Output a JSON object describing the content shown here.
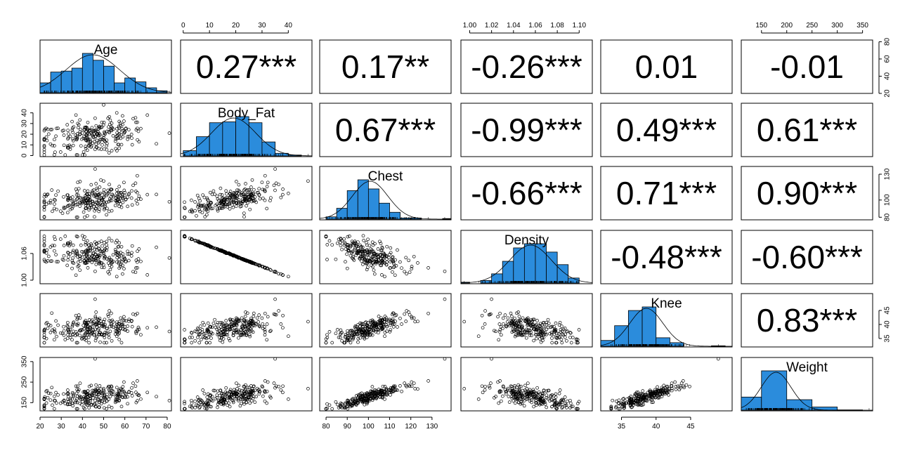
{
  "chart_data": {
    "type": "scatter-matrix",
    "variables": [
      "Age",
      "Body_Fat",
      "Chest",
      "Density",
      "Knee",
      "Weight"
    ],
    "histogram_color": "#2b8cdc",
    "correlations": [
      [
        null,
        "0.27***",
        "0.17**",
        "-0.26***",
        "0.01",
        "-0.01"
      ],
      [
        null,
        null,
        "0.67***",
        "-0.99***",
        "0.49***",
        "0.61***"
      ],
      [
        null,
        null,
        null,
        "-0.66***",
        "0.71***",
        "0.90***"
      ],
      [
        null,
        null,
        null,
        null,
        "-0.48***",
        "-0.60***"
      ],
      [
        null,
        null,
        null,
        null,
        null,
        "0.83***"
      ]
    ],
    "ranges": {
      "Age": [
        20,
        82
      ],
      "Body_Fat": [
        -1,
        49
      ],
      "Chest": [
        77,
        139
      ],
      "Density": [
        0.992,
        1.112
      ],
      "Knee": [
        32,
        51
      ],
      "Weight": [
        110,
        370
      ]
    },
    "axes": {
      "Age": {
        "ticks": [
          "20",
          "30",
          "40",
          "50",
          "60",
          "70",
          "80"
        ],
        "values": [
          20,
          30,
          40,
          50,
          60,
          70,
          80
        ]
      },
      "Body_Fat": {
        "ticks": [
          "0",
          "10",
          "20",
          "30",
          "40"
        ],
        "values": [
          0,
          10,
          20,
          30,
          40
        ]
      },
      "Chest": {
        "ticks": [
          "80",
          "90",
          "100",
          "110",
          "120",
          "130"
        ],
        "values": [
          80,
          90,
          100,
          110,
          120,
          130
        ]
      },
      "Density_top": {
        "ticks": [
          "1.00",
          "1.02",
          "1.04",
          "1.06",
          "1.08",
          "1.10"
        ],
        "values": [
          1.0,
          1.02,
          1.04,
          1.06,
          1.08,
          1.1
        ]
      },
      "Density_left": {
        "ticks": [
          "1.00",
          "1.06"
        ],
        "values": [
          1.0,
          1.06
        ]
      },
      "Knee": {
        "ticks": [
          "35",
          "40",
          "45"
        ],
        "values": [
          35,
          40,
          45
        ]
      },
      "Weight_top": {
        "ticks": [
          "150",
          "200",
          "250",
          "300",
          "350"
        ],
        "values": [
          150,
          200,
          250,
          300,
          350
        ]
      },
      "Weight_left": {
        "ticks": [
          "150",
          "250",
          "350"
        ],
        "values": [
          150,
          250,
          350
        ]
      },
      "Age_right": {
        "ticks": [
          "20",
          "40",
          "60",
          "80"
        ],
        "values": [
          20,
          40,
          60,
          80
        ]
      },
      "Chest_right": {
        "ticks": [
          "80",
          "100",
          "130"
        ],
        "values": [
          80,
          100,
          130
        ]
      },
      "Knee_right": {
        "ticks": [
          "35",
          "40",
          "45"
        ],
        "values": [
          35,
          40,
          45
        ]
      }
    },
    "histograms": {
      "Age": {
        "edges": [
          20,
          25,
          30,
          35,
          40,
          45,
          50,
          55,
          60,
          65,
          70,
          75,
          80
        ],
        "counts": [
          10,
          21,
          22,
          25,
          40,
          33,
          27,
          10,
          15,
          11,
          5,
          2
        ]
      },
      "Body_Fat": {
        "edges": [
          0,
          5,
          10,
          15,
          20,
          25,
          30,
          35,
          40,
          45,
          50
        ],
        "counts": [
          6,
          22,
          38,
          39,
          45,
          38,
          16,
          3,
          1,
          0
        ]
      },
      "Chest": {
        "edges": [
          80,
          85,
          90,
          95,
          100,
          105,
          110,
          115,
          120,
          125,
          130,
          135,
          140
        ],
        "counts": [
          4,
          19,
          50,
          69,
          53,
          28,
          12,
          2,
          2,
          0,
          0,
          1
        ]
      },
      "Density": {
        "edges": [
          0.99,
          1.0,
          1.01,
          1.02,
          1.03,
          1.04,
          1.05,
          1.06,
          1.07,
          1.08,
          1.09,
          1.1,
          1.11
        ],
        "counts": [
          1,
          0,
          3,
          11,
          26,
          42,
          47,
          47,
          37,
          22,
          6,
          0
        ]
      },
      "Knee": {
        "edges": [
          32,
          34,
          36,
          38,
          40,
          42,
          44,
          46,
          48,
          50
        ],
        "counts": [
          13,
          46,
          80,
          88,
          19,
          8,
          0,
          0,
          1
        ]
      },
      "Weight": {
        "edges": [
          100,
          150,
          200,
          250,
          300,
          350
        ],
        "counts": [
          50,
          150,
          40,
          12,
          1
        ]
      }
    }
  }
}
